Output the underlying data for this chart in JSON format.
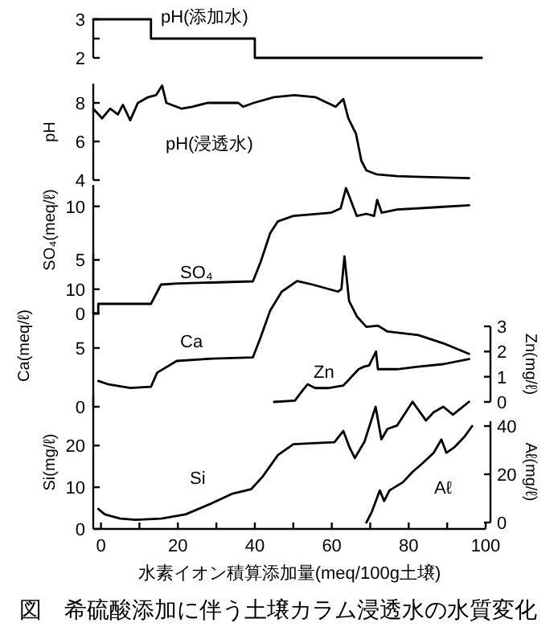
{
  "chart_data": [
    {
      "type": "step",
      "xlim": [
        -2,
        100
      ],
      "ylim": [
        2,
        3
      ],
      "yticks": [
        2,
        {
          "value": 2.5,
          "label": null
        },
        3
      ],
      "tick_labels": "y",
      "series": [
        {
          "name": "pH(添加水)",
          "color": "#000000",
          "x": [
            -2,
            13,
            40,
            99
          ],
          "values": [
            3,
            2.5,
            2,
            2
          ]
        }
      ]
    },
    {
      "type": "line",
      "xlim": [
        -2,
        100
      ],
      "ylim": [
        4,
        9
      ],
      "yticks": [
        4,
        6,
        8
      ],
      "ylabel": "pH",
      "tick_labels": "y",
      "series": [
        {
          "name": "pH(浸透水)",
          "color": "#000000",
          "x": [
            -2,
            0.3,
            2.4,
            4.4,
            5.7,
            7.6,
            9.6,
            12.3,
            14.3,
            15.9,
            17,
            21,
            23.7,
            27.7,
            35.7,
            37,
            39.7,
            45,
            50.3,
            55.7,
            61,
            63,
            64.3,
            66.3,
            67.7,
            69,
            71.6,
            77,
            95.7
          ],
          "values": [
            7.7,
            7.2,
            7.7,
            7.4,
            7.9,
            7.1,
            8.0,
            8.3,
            8.4,
            8.9,
            8.0,
            7.7,
            7.8,
            8.0,
            8.0,
            7.8,
            8.0,
            8.3,
            8.4,
            8.3,
            7.8,
            8.2,
            7.2,
            6.4,
            5.0,
            4.5,
            4.3,
            4.2,
            4.1
          ]
        }
      ]
    },
    {
      "type": "line",
      "xlim": [
        -2,
        100
      ],
      "ylim": [
        0,
        12
      ],
      "yticks": [
        0,
        5,
        10
      ],
      "ylabel": "SO₄(meq/ℓ)",
      "tick_labels": "y",
      "series": [
        {
          "name": "SO₄",
          "color": "#000000",
          "x": [
            -2,
            -0.7,
            -0.7,
            13,
            15.6,
            20,
            39.5,
            41.5,
            44,
            46,
            50,
            59.8,
            62.3,
            63.7,
            64.8,
            66.5,
            69,
            71,
            71.8,
            73,
            77,
            86.5,
            95.7
          ],
          "values": [
            0,
            0,
            0.9,
            0.9,
            2.7,
            2.8,
            3.0,
            4.8,
            7.5,
            8.6,
            9.1,
            9.4,
            9.8,
            11.7,
            10.7,
            9.1,
            9.3,
            9.1,
            10.6,
            9.4,
            9.7,
            9.9,
            10.1
          ]
        }
      ]
    },
    {
      "type": "line",
      "xlim": [
        -2,
        100
      ],
      "ylim": [
        0,
        13
      ],
      "yticks": [
        0,
        5,
        10
      ],
      "ylabel": "Ca(meq/ℓ)",
      "y2lim": [
        0,
        3
      ],
      "y2ticks": [
        0,
        1,
        2,
        3
      ],
      "y2label": "Zn(mg/ℓ)",
      "tick_labels": "y",
      "series": [
        {
          "name": "Ca",
          "color": "#000000",
          "x": [
            -0.7,
            2,
            7.6,
            13,
            14.6,
            19.7,
            29,
            39.5,
            41.5,
            44,
            47,
            51,
            55,
            61.6,
            62.5,
            63.3,
            64.5,
            66.5,
            69,
            72,
            74.5,
            82.5,
            89,
            95.7
          ],
          "values": [
            2.2,
            1.9,
            1.6,
            1.7,
            2.9,
            3.9,
            4.1,
            4.2,
            5.9,
            8.2,
            9.8,
            10.7,
            10.4,
            9.8,
            10.0,
            12.8,
            9.0,
            7.7,
            6.8,
            6.9,
            6.4,
            6.1,
            5.4,
            4.5
          ]
        },
        {
          "name": "Zn",
          "color": "#000000",
          "axis": "y2",
          "x": [
            45,
            50.4,
            52.4,
            53.7,
            55.7,
            59,
            63,
            67,
            68.4,
            69.7,
            71.5,
            72,
            77,
            82.5,
            89,
            95.7
          ],
          "values": [
            0,
            0.05,
            0.45,
            0.7,
            0.55,
            0.55,
            0.65,
            1.3,
            1.4,
            1.45,
            2.0,
            1.3,
            1.3,
            1.4,
            1.5,
            1.7
          ]
        }
      ]
    },
    {
      "type": "line",
      "xlim": [
        -2,
        100
      ],
      "xticks": [
        0,
        {
          "value": 10,
          "label": null
        },
        20,
        {
          "value": 30,
          "label": null
        },
        40,
        {
          "value": 50,
          "label": null
        },
        60,
        {
          "value": 70,
          "label": null
        },
        80,
        {
          "value": 90,
          "label": null
        },
        100
      ],
      "ylim": [
        0,
        32
      ],
      "yticks": [
        0,
        10,
        20
      ],
      "ylabel": "Si(mg/ℓ)",
      "y2lim": [
        0,
        42
      ],
      "y2ticks": [
        0,
        20,
        40
      ],
      "y2label": "Aℓ(mg/ℓ)",
      "xlabel": "水素イオン積算添加量(meq/100g土壌)",
      "title": "図　希硫酸添加に伴う土壌カラム浸透水の水質変化",
      "series": [
        {
          "name": "Si",
          "color": "#000000",
          "x": [
            -0.7,
            1,
            5,
            9,
            15.7,
            22,
            28.7,
            34,
            39,
            42,
            46,
            50,
            54,
            60.7,
            63,
            64.6,
            66,
            68.5,
            71.4,
            72.9,
            74.5,
            77,
            81,
            84.5,
            86.5,
            89,
            91.5,
            95.7
          ],
          "values": [
            4.8,
            3.5,
            2.5,
            2.2,
            2.5,
            3.5,
            6.1,
            8.4,
            9.5,
            12.5,
            17.7,
            20.3,
            20.5,
            20.8,
            23.5,
            19.6,
            17,
            20.9,
            29.3,
            21.5,
            24.0,
            24.8,
            30.5,
            26,
            28,
            29.3,
            27.4,
            30.5
          ]
        },
        {
          "name": "Aℓ",
          "color": "#000000",
          "axis": "y2",
          "x": [
            69,
            70.4,
            72.5,
            73.6,
            75,
            78.5,
            81,
            83.5,
            86.5,
            88.5,
            89.8,
            91.8,
            94.5,
            96.5
          ],
          "values": [
            0,
            4.4,
            13.3,
            8.9,
            13.3,
            16.7,
            21,
            24.4,
            28.9,
            34.4,
            28.9,
            31.1,
            35.6,
            40
          ]
        }
      ]
    }
  ]
}
